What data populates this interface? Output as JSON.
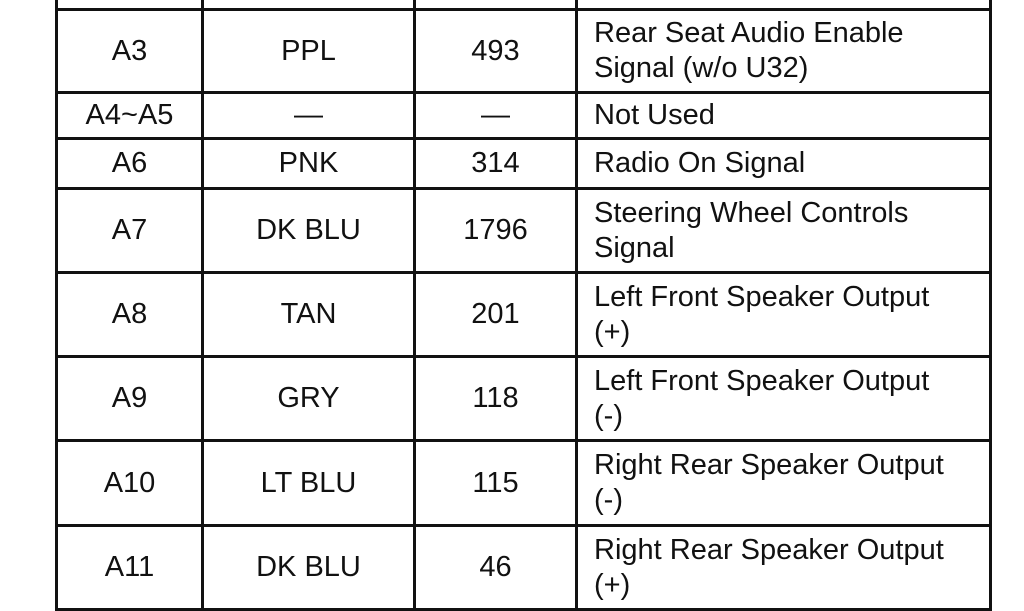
{
  "table": {
    "rows": [
      {
        "pin": "",
        "color": "",
        "circuit": "",
        "function": ""
      },
      {
        "pin": "A3",
        "color": "PPL",
        "circuit": "493",
        "function": "Rear Seat Audio Enable Signal (w/o U32)"
      },
      {
        "pin": "A4~A5",
        "color": "—",
        "circuit": "—",
        "function": "Not Used"
      },
      {
        "pin": "A6",
        "color": "PNK",
        "circuit": "314",
        "function": "Radio On Signal"
      },
      {
        "pin": "A7",
        "color": "DK BLU",
        "circuit": "1796",
        "function": "Steering Wheel Controls Signal"
      },
      {
        "pin": "A8",
        "color": "TAN",
        "circuit": "201",
        "function": "Left Front Speaker Output (+)"
      },
      {
        "pin": "A9",
        "color": "GRY",
        "circuit": "118",
        "function": "Left Front Speaker Output (-)"
      },
      {
        "pin": "A10",
        "color": "LT BLU",
        "circuit": "115",
        "function": "Right Rear Speaker Output (-)"
      },
      {
        "pin": "A11",
        "color": "DK BLU",
        "circuit": "46",
        "function": "Right Rear Speaker Output (+)"
      }
    ]
  }
}
